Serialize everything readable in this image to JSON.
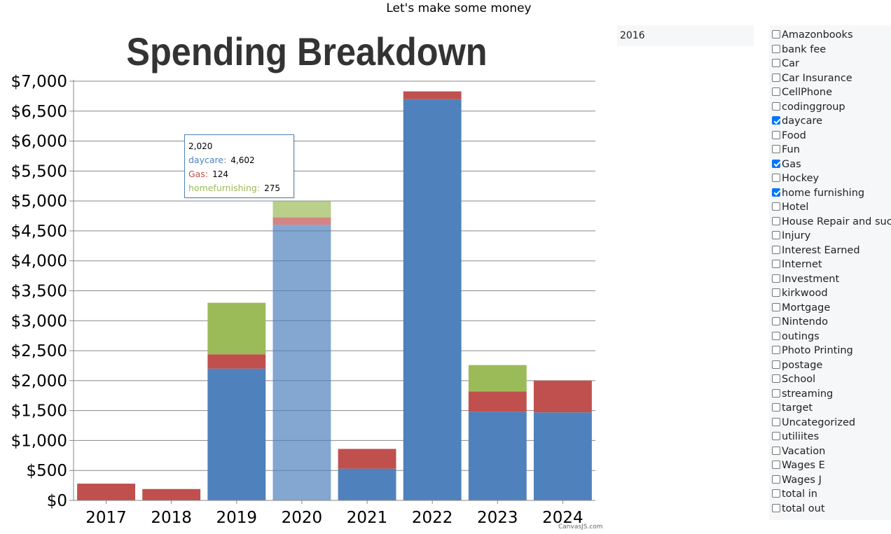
{
  "header": {
    "text": "Let's make some money"
  },
  "year_select": {
    "value": "2016"
  },
  "categories": [
    {
      "label": "Amazonbooks",
      "checked": false
    },
    {
      "label": "bank fee",
      "checked": false
    },
    {
      "label": "Car",
      "checked": false
    },
    {
      "label": "Car Insurance",
      "checked": false
    },
    {
      "label": "CellPhone",
      "checked": false
    },
    {
      "label": "codinggroup",
      "checked": false
    },
    {
      "label": "daycare",
      "checked": true
    },
    {
      "label": "Food",
      "checked": false
    },
    {
      "label": "Fun",
      "checked": false
    },
    {
      "label": "Gas",
      "checked": true
    },
    {
      "label": "Hockey",
      "checked": false
    },
    {
      "label": "home furnishing",
      "checked": true
    },
    {
      "label": "Hotel",
      "checked": false
    },
    {
      "label": "House Repair and such",
      "checked": false
    },
    {
      "label": "Injury",
      "checked": false
    },
    {
      "label": "Interest Earned",
      "checked": false
    },
    {
      "label": "Internet",
      "checked": false
    },
    {
      "label": "Investment",
      "checked": false
    },
    {
      "label": "kirkwood",
      "checked": false
    },
    {
      "label": "Mortgage",
      "checked": false
    },
    {
      "label": "Nintendo",
      "checked": false
    },
    {
      "label": "outings",
      "checked": false
    },
    {
      "label": "Photo Printing",
      "checked": false
    },
    {
      "label": "postage",
      "checked": false
    },
    {
      "label": "School",
      "checked": false
    },
    {
      "label": "streaming",
      "checked": false
    },
    {
      "label": "target",
      "checked": false
    },
    {
      "label": "Uncategorized",
      "checked": false
    },
    {
      "label": "utiliites",
      "checked": false
    },
    {
      "label": "Vacation",
      "checked": false
    },
    {
      "label": "Wages E",
      "checked": false
    },
    {
      "label": "Wages J",
      "checked": false
    },
    {
      "label": "total in",
      "checked": false
    },
    {
      "label": "total out",
      "checked": false
    }
  ],
  "tooltip": {
    "title": "2,020",
    "rows": [
      {
        "name": "daycare:",
        "value": "4,602",
        "color": "#4f81bc"
      },
      {
        "name": "Gas:",
        "value": "124",
        "color": "#c0504e"
      },
      {
        "name": "homefurnishing:",
        "value": "275",
        "color": "#9bbb58"
      }
    ]
  },
  "credit": "CanvasJS.com",
  "chart_data": {
    "type": "bar",
    "stacked": true,
    "title": "Spending Breakdown",
    "categories": [
      "2017",
      "2018",
      "2019",
      "2020",
      "2021",
      "2022",
      "2023",
      "2024"
    ],
    "series": [
      {
        "name": "daycare",
        "color": "#4f81bc",
        "values": [
          0,
          0,
          2200,
          4602,
          530,
          6700,
          1480,
          1470
        ]
      },
      {
        "name": "Gas",
        "color": "#c0504e",
        "values": [
          280,
          190,
          240,
          124,
          330,
          130,
          340,
          530
        ]
      },
      {
        "name": "homefurnishing",
        "color": "#9bbb58",
        "values": [
          0,
          0,
          860,
          275,
          0,
          0,
          440,
          0
        ]
      }
    ],
    "highlighted_category": "2020",
    "ylim": [
      0,
      7000
    ],
    "yticks": [
      0,
      500,
      1000,
      1500,
      2000,
      2500,
      3000,
      3500,
      4000,
      4500,
      5000,
      5500,
      6000,
      6500,
      7000
    ],
    "ytick_labels": [
      "$0",
      "$500",
      "$1,000",
      "$1,500",
      "$2,000",
      "$2,500",
      "$3,000",
      "$3,500",
      "$4,000",
      "$4,500",
      "$5,000",
      "$5,500",
      "$6,000",
      "$6,500",
      "$7,000"
    ],
    "grid": true,
    "legend": "none"
  }
}
